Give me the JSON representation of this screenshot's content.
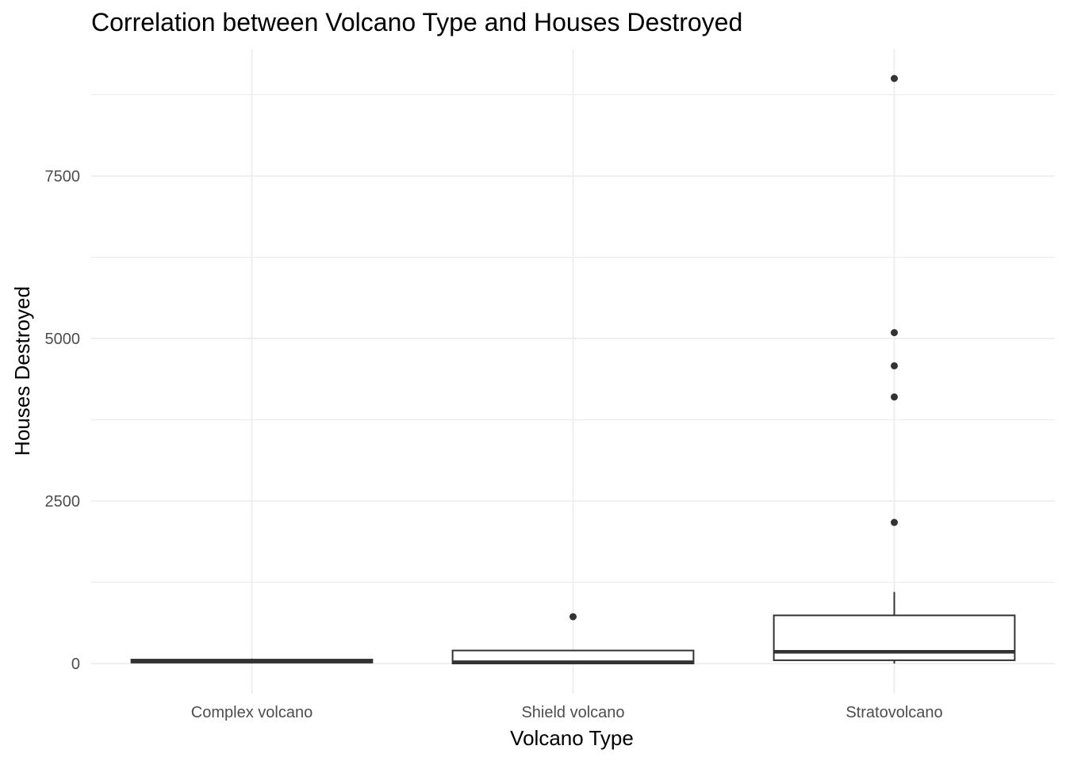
{
  "chart_data": {
    "type": "boxplot",
    "title": "Correlation between Volcano Type and Houses Destroyed",
    "xlabel": "Volcano Type",
    "ylabel": "Houses Destroyed",
    "ylim": [
      -400,
      9500
    ],
    "y_ticks": [
      0,
      2500,
      5000,
      7500
    ],
    "y_tick_labels": [
      "0",
      "2500",
      "5000",
      "7500"
    ],
    "grid": true,
    "legend": "none",
    "colors": {
      "box": "#333333",
      "outlier": "#333333",
      "grid": "#ebebeb",
      "fill": "#ffffff"
    },
    "categories": [
      "Complex volcano",
      "Shield volcano",
      "Stratovolcano"
    ],
    "boxes": [
      {
        "category": "Complex volcano",
        "min": 0,
        "q1": 15,
        "median": 30,
        "q3": 60,
        "max": 75,
        "outliers": []
      },
      {
        "category": "Shield volcano",
        "min": 0,
        "q1": 0,
        "median": 20,
        "q3": 200,
        "max": 200,
        "outliers": [
          720
        ]
      },
      {
        "category": "Stratovolcano",
        "min": 0,
        "q1": 50,
        "median": 180,
        "q3": 740,
        "max": 1100,
        "outliers": [
          2170,
          4100,
          4580,
          5090,
          9000
        ]
      }
    ]
  }
}
